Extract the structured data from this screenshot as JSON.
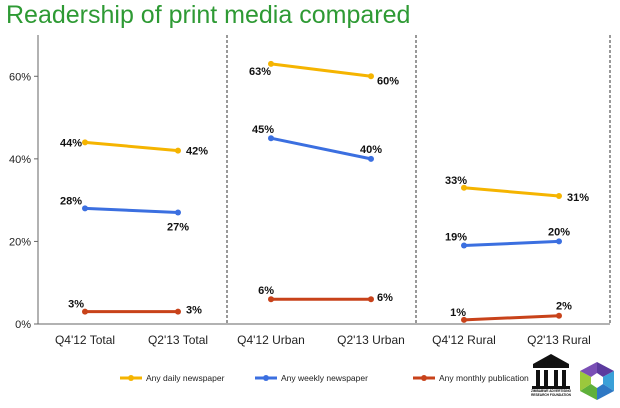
{
  "title": "Readership of print media compared",
  "chart_data": {
    "type": "line",
    "title": "",
    "xlabel": "",
    "ylabel": "",
    "ylim": [
      0,
      70
    ],
    "yticks": [
      0,
      20,
      40,
      60
    ],
    "ytick_labels": [
      "0%",
      "20%",
      "40%",
      "60%"
    ],
    "legend_position": "bottom",
    "grid": false,
    "panels": [
      {
        "name": "Total",
        "categories": [
          "Q4'12 Total",
          "Q2'13 Total"
        ],
        "series": [
          {
            "name": "Any daily newspaper",
            "values": [
              44,
              42
            ],
            "labels": [
              "44%",
              "42%"
            ]
          },
          {
            "name": "Any weekly newspaper",
            "values": [
              28,
              27
            ],
            "labels": [
              "28%",
              "27%"
            ]
          },
          {
            "name": "Any monthly publication",
            "values": [
              3,
              3
            ],
            "labels": [
              "3%",
              "3%"
            ]
          }
        ]
      },
      {
        "name": "Urban",
        "categories": [
          "Q4'12 Urban",
          "Q2'13 Urban"
        ],
        "series": [
          {
            "name": "Any daily newspaper",
            "values": [
              63,
              60
            ],
            "labels": [
              "63%",
              "60%"
            ]
          },
          {
            "name": "Any weekly newspaper",
            "values": [
              45,
              40
            ],
            "labels": [
              "45%",
              "40%"
            ]
          },
          {
            "name": "Any monthly publication",
            "values": [
              6,
              6
            ],
            "labels": [
              "6%",
              "6%"
            ]
          }
        ]
      },
      {
        "name": "Rural",
        "categories": [
          "Q4'12 Rural",
          "Q2'13 Rural"
        ],
        "series": [
          {
            "name": "Any daily newspaper",
            "values": [
              33,
              31
            ],
            "labels": [
              "33%",
              "31%"
            ]
          },
          {
            "name": "Any weekly newspaper",
            "values": [
              19,
              20
            ],
            "labels": [
              "19%",
              "20%"
            ]
          },
          {
            "name": "Any monthly publication",
            "values": [
              1,
              2
            ],
            "labels": [
              "1%",
              "2%"
            ]
          }
        ]
      }
    ],
    "legend": [
      {
        "name": "Any daily newspaper",
        "color": "#f5b400"
      },
      {
        "name": "Any weekly newspaper",
        "color": "#3b6fe0"
      },
      {
        "name": "Any monthly publication",
        "color": "#c8421a"
      }
    ]
  },
  "logos": {
    "zarf": {
      "name": "ZARF",
      "caption": "ZIMBABWE ADVERTISING RESEARCH FOUNDATION"
    },
    "partner": {
      "icon": "hexagon-logo-icon"
    }
  }
}
